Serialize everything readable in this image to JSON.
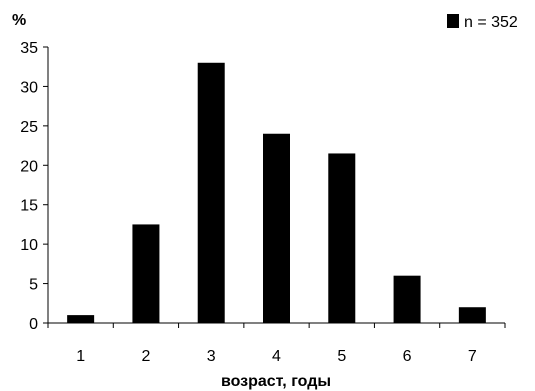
{
  "chart_data": {
    "type": "bar",
    "categories": [
      "1",
      "2",
      "3",
      "4",
      "5",
      "6",
      "7"
    ],
    "series": [
      {
        "name": "n = 352",
        "values": [
          1,
          12.5,
          33,
          24,
          21.5,
          6,
          2
        ]
      }
    ],
    "y_ticks": [
      "0",
      "5",
      "10",
      "15",
      "20",
      "25",
      "30",
      "35"
    ],
    "ylim": [
      0,
      35
    ],
    "ylabel": "%",
    "xlabel": "возраст, годы",
    "legend_position": "top-right",
    "grid": false,
    "bar_color": "#000000"
  }
}
